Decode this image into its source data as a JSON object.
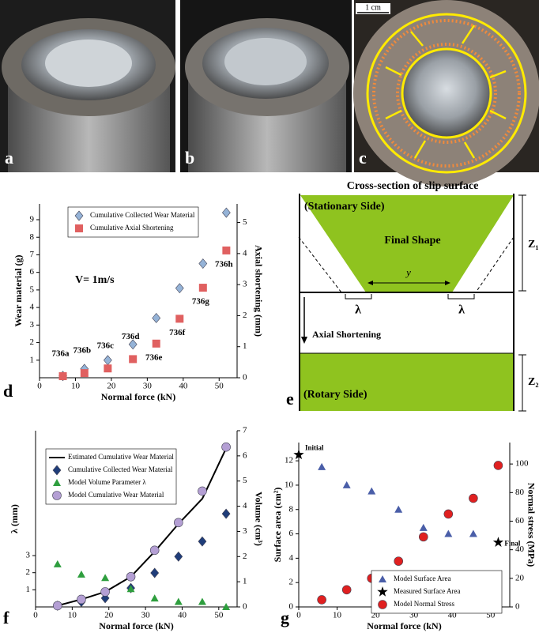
{
  "photos": {
    "labels": [
      "a",
      "b",
      "c"
    ],
    "scale_bar": "1 cm"
  },
  "panel_labels": [
    "d",
    "e",
    "f",
    "g"
  ],
  "diagram": {
    "title": "Cross-section of slip surface",
    "stationary": "(Stationary Side)",
    "final_shape": "Final Shape",
    "y": "y",
    "lambda_left": "λ",
    "lambda_right": "λ",
    "axial": "Axial Shortening",
    "rotary": "(Rotary Side)",
    "z1": "Z₁",
    "z2": "Z₂"
  },
  "chart_data": [
    {
      "type": "scatter",
      "xlabel": "Normal force (kN)",
      "ylabel": "Wear material (g)",
      "y2label": "Axial shortening (mm)",
      "annotation": "V= 1m/s",
      "x": [
        6.5,
        12.5,
        19,
        26,
        32.5,
        39,
        45.5,
        52
      ],
      "point_labels": [
        "736a",
        "736b",
        "736c",
        "736d",
        "736e",
        "736f",
        "736g",
        "736h"
      ],
      "series": [
        {
          "name": "Cumulative Collected Wear Material",
          "color": "#95b3d7",
          "marker": "diamond",
          "values": [
            0.1,
            0.5,
            1.0,
            1.9,
            3.4,
            5.1,
            6.5,
            9.4
          ]
        },
        {
          "name": "Cumulative Axial Shortening",
          "color": "#e06060",
          "marker": "square",
          "axis": "y2",
          "values": [
            0.05,
            0.15,
            0.3,
            0.6,
            1.1,
            1.9,
            2.9,
            4.1
          ]
        }
      ],
      "xlim": [
        0,
        55
      ],
      "xticks": [
        0,
        10,
        20,
        30,
        40,
        50
      ],
      "ylim": [
        0,
        9.9
      ],
      "yticks": [
        1,
        2,
        3,
        4,
        5,
        6,
        7,
        8,
        9
      ],
      "y2lim": [
        0,
        5.6
      ],
      "y2ticks": [
        0,
        1,
        2,
        3,
        4,
        5
      ],
      "legend": "upper left"
    },
    {
      "type": "scatter",
      "xlabel": "Normal force (kN)",
      "ylabel": "λ (mm)",
      "y2label": "Volume (cm³)",
      "x": [
        6,
        12.5,
        19,
        26,
        32.5,
        39,
        45.5,
        52
      ],
      "series": [
        {
          "name": "Estimated Cumulative Wear Material",
          "color": "#000000",
          "marker": "line",
          "axis": "y2",
          "values": [
            0.05,
            0.3,
            0.6,
            1.2,
            2.2,
            3.3,
            4.3,
            6.3
          ]
        },
        {
          "name": "Cumulative Collected Wear Material",
          "color": "#1f3d7a",
          "marker": "diamond",
          "axis": "y2",
          "values": [
            0.05,
            0.2,
            0.35,
            0.75,
            1.35,
            2.0,
            2.6,
            3.7
          ]
        },
        {
          "name": "Model Volume Parameter λ",
          "color": "#2e9e3e",
          "marker": "triangle",
          "values": [
            2.5,
            1.9,
            1.7,
            1.05,
            0.5,
            0.3,
            0.3,
            0.0
          ]
        },
        {
          "name": "Model Cumulative Wear Material",
          "color": "#b49fd4",
          "marker": "circle",
          "axis": "y2",
          "values": [
            0.05,
            0.3,
            0.6,
            1.2,
            2.25,
            3.35,
            4.6,
            6.35
          ]
        }
      ],
      "xlim": [
        0,
        55
      ],
      "xticks": [
        0,
        10,
        20,
        30,
        40,
        50
      ],
      "ylim": [
        0,
        10.3
      ],
      "yticks": [
        1,
        2,
        3
      ],
      "y2lim": [
        0,
        7
      ],
      "y2ticks": [
        0,
        1,
        2,
        3,
        4,
        5,
        6,
        7
      ],
      "legend": "upper left"
    },
    {
      "type": "scatter",
      "xlabel": "Normal force (kN)",
      "ylabel": "Surface area (cm²)",
      "y2label": "Normal stress (MPa)",
      "x": [
        6,
        12.5,
        19,
        26,
        32.5,
        39,
        45.5,
        52
      ],
      "series": [
        {
          "name": "Model Surface Area",
          "color": "#4a5ea8",
          "marker": "triangle",
          "values": [
            11.5,
            10,
            9.5,
            8,
            6.5,
            6,
            6,
            null
          ]
        },
        {
          "name": "Measured Surface Area",
          "color": "#000000",
          "marker": "star",
          "x": [
            0,
            52
          ],
          "values": [
            12.5,
            5.3
          ],
          "point_labels": [
            "Initial",
            "Final"
          ]
        },
        {
          "name": "Model Normal Stress",
          "color": "#e02020",
          "marker": "circle",
          "axis": "y2",
          "values": [
            5,
            12,
            20,
            32,
            49,
            65,
            76,
            99
          ]
        }
      ],
      "xlim": [
        0,
        55
      ],
      "xticks": [
        0,
        10,
        20,
        30,
        40,
        50
      ],
      "ylim": [
        0,
        13.5
      ],
      "yticks": [
        0,
        2,
        4,
        6,
        8,
        10,
        12
      ],
      "y2lim": [
        0,
        115
      ],
      "y2ticks": [
        0,
        20,
        40,
        60,
        80,
        100
      ],
      "legend": "lower right"
    }
  ]
}
